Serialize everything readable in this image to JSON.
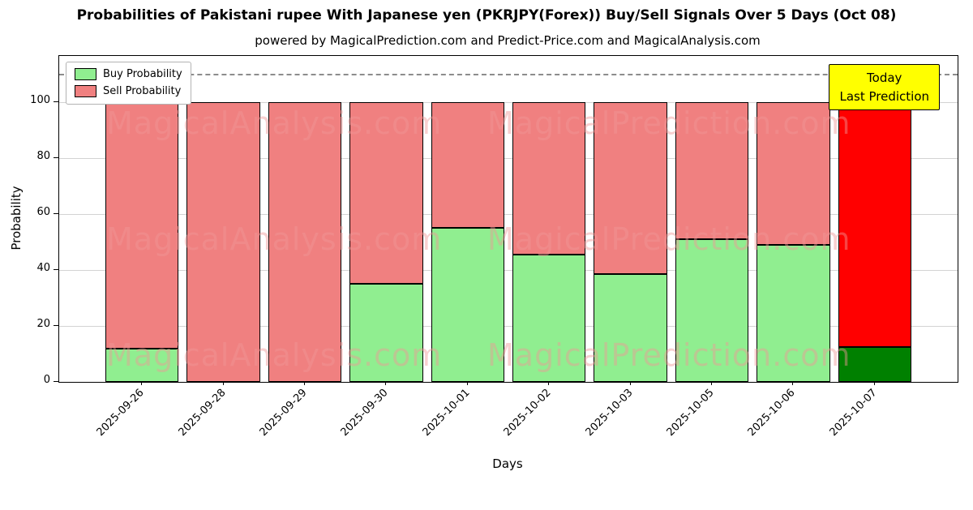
{
  "chart_data": {
    "type": "bar",
    "stacked": true,
    "title": "Probabilities of Pakistani rupee With Japanese yen (PKRJPY(Forex)) Buy/Sell Signals Over 5 Days (Oct 08)",
    "subtitle": "powered by MagicalPrediction.com and Predict-Price.com and MagicalAnalysis.com",
    "xlabel": "Days",
    "ylabel": "Probability",
    "categories": [
      "2025-09-26",
      "2025-09-28",
      "2025-09-29",
      "2025-09-30",
      "2025-10-01",
      "2025-10-02",
      "2025-10-03",
      "2025-10-05",
      "2025-10-06",
      "2025-10-07"
    ],
    "series": [
      {
        "name": "Buy Probability",
        "values": [
          12,
          0,
          0,
          35,
          55,
          45.5,
          38.5,
          51,
          49,
          12.5
        ]
      },
      {
        "name": "Sell Probability",
        "values": [
          88,
          100,
          100,
          65,
          45,
          54.5,
          61.5,
          49,
          51,
          87.5
        ]
      }
    ],
    "yticks": [
      0,
      20,
      40,
      60,
      80,
      100
    ],
    "ylim": [
      0,
      116.5
    ],
    "dashed_line_y": 110,
    "grid": "horizontal",
    "legend_position": "top-left",
    "annotation": {
      "lines": [
        "Today",
        "Last Prediction"
      ]
    },
    "watermarks": [
      "MagicalAnalysis.com",
      "MagicalPrediction.com"
    ],
    "colors": {
      "buy": "#90ee90",
      "sell": "#f08080",
      "today_buy": "#008000",
      "today_sell": "#ff0000",
      "annotation_bg": "#ffff00",
      "watermark": "#f09696",
      "grid": "#d3d3d3",
      "dashed_line": "#8c8c8c"
    }
  }
}
